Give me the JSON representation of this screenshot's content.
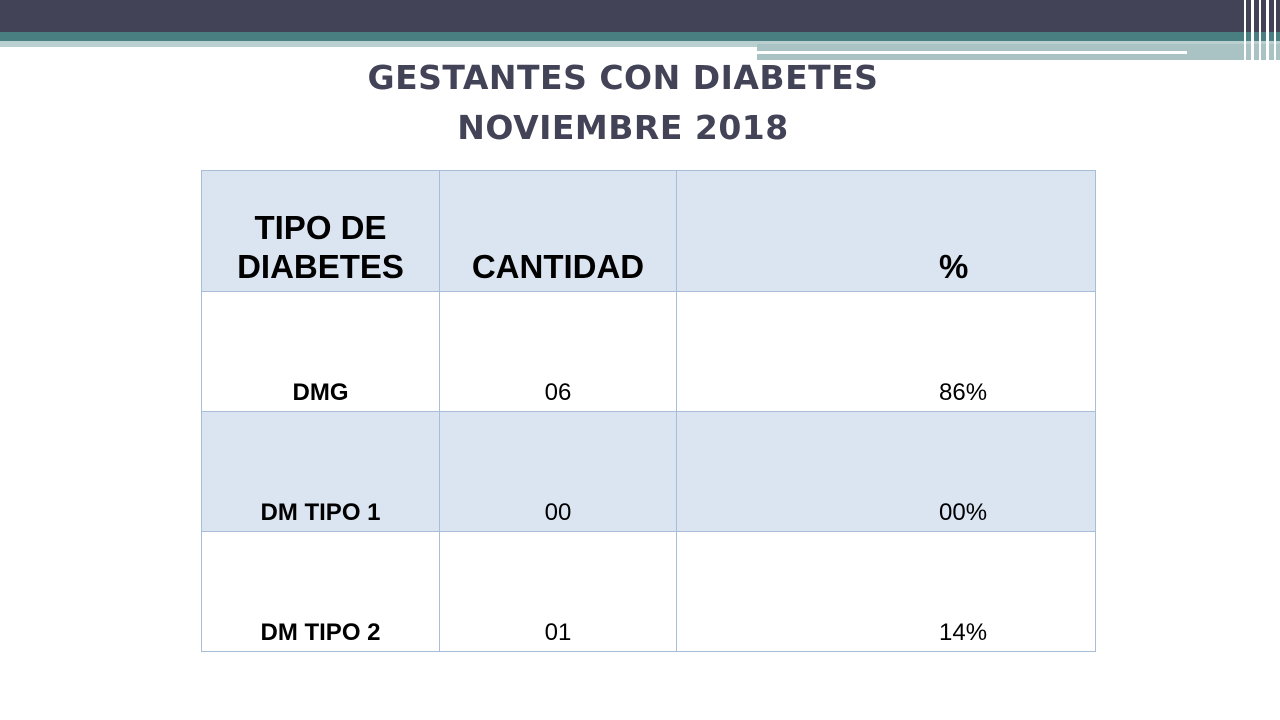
{
  "slide": {
    "title_line1": "GESTANTES CON DIABETES",
    "title_line2": "NOVIEMBRE 2018"
  },
  "table": {
    "headers": [
      "TIPO DE DIABETES",
      "CANTIDAD",
      "%"
    ],
    "rows": [
      [
        "DMG",
        "06",
        "86%"
      ],
      [
        "DM TIPO 1",
        "00",
        "00%"
      ],
      [
        "DM TIPO 2",
        "01",
        "14%"
      ]
    ]
  },
  "colors": {
    "title": "#434357",
    "header_bg": "#dbe5f1",
    "top_bar": "#434357",
    "accent_bar": "#4a7f82"
  }
}
